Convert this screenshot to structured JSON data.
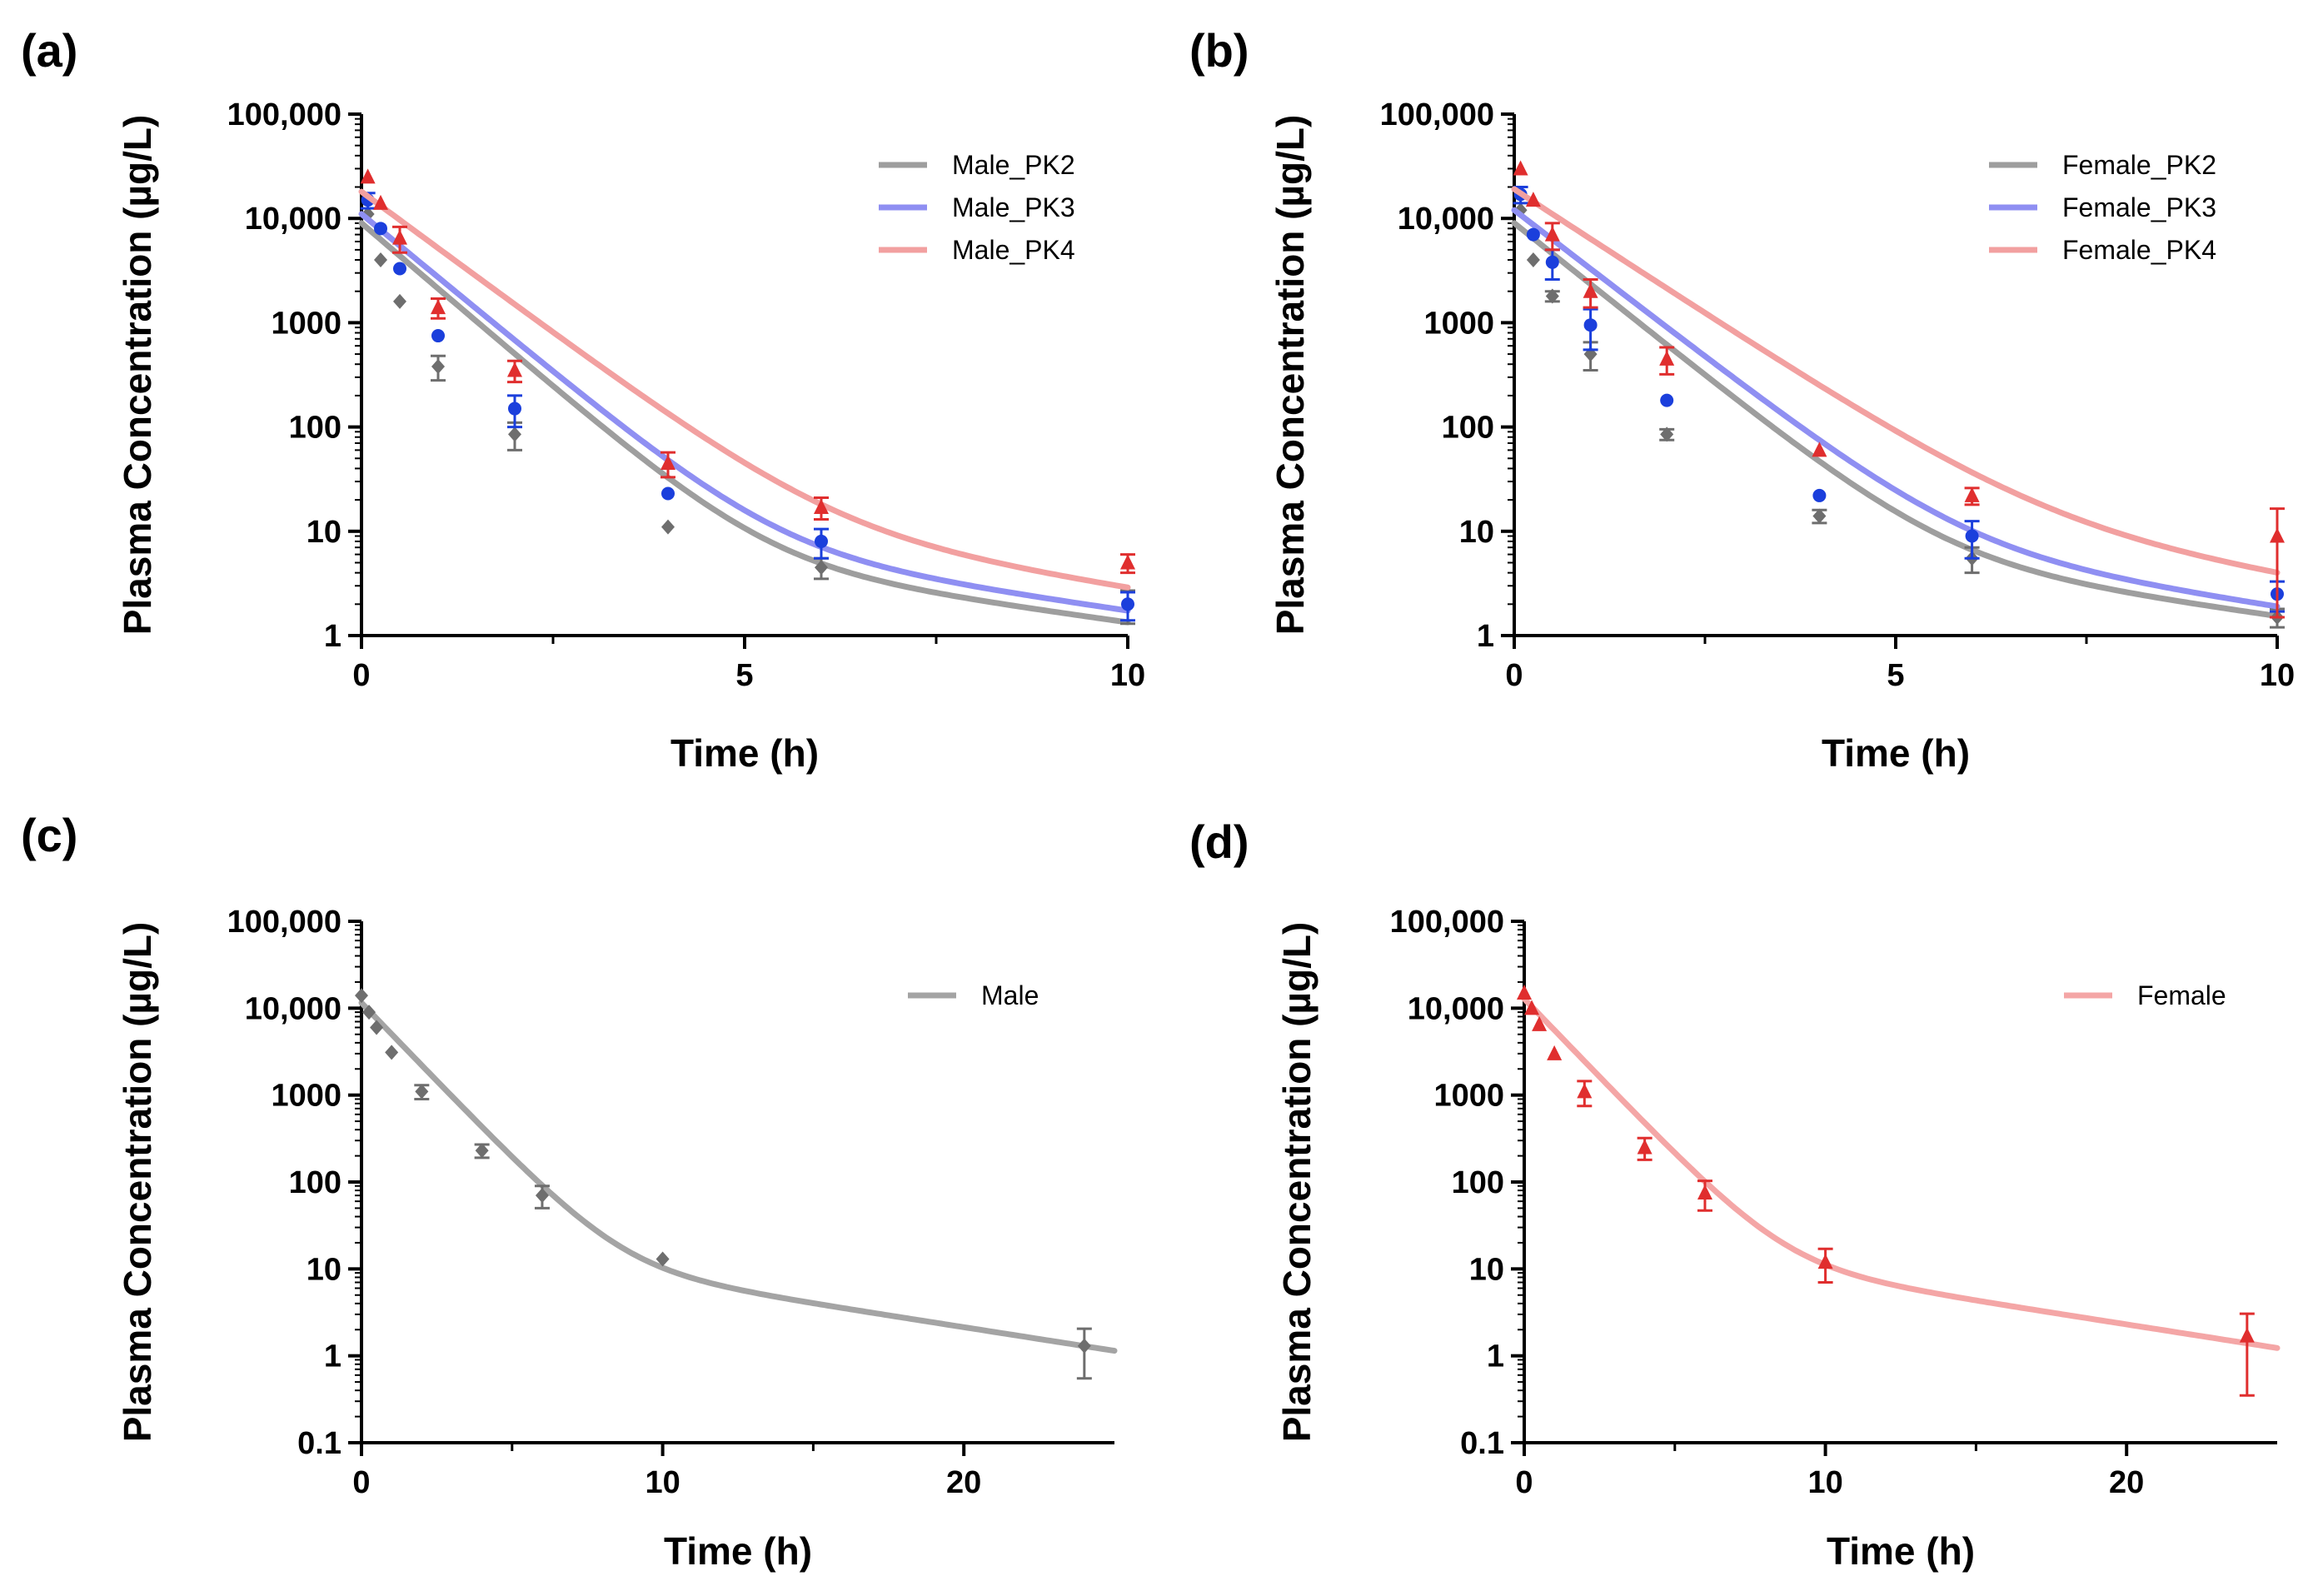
{
  "panels": [
    {
      "label": "(a)",
      "chart_data": {
        "type": "line",
        "title": "",
        "xlabel": "Time (h)",
        "ylabel": "Plasma Concentration (µg/L)",
        "xlim": [
          0,
          10
        ],
        "ylim": [
          1,
          100000
        ],
        "yscale": "log",
        "xticks": [
          {
            "v": 0,
            "t": "0"
          },
          {
            "v": 5,
            "t": "5"
          },
          {
            "v": 10,
            "t": "10"
          }
        ],
        "xminor": [
          2.5,
          7.5
        ],
        "yticks": [
          {
            "v": 1,
            "t": "1"
          },
          {
            "v": 10,
            "t": "10"
          },
          {
            "v": 100,
            "t": "100"
          },
          {
            "v": 1000,
            "t": "1000"
          },
          {
            "v": 10000,
            "t": "10,000"
          },
          {
            "v": 100000,
            "t": "100,000"
          }
        ],
        "legend_position": "top-right",
        "series": [
          {
            "name": "Male_PK2",
            "line_color": "#9e9e9e",
            "marker_color": "#6e6e6e",
            "marker": "diamond",
            "fit": {
              "A": 9000,
              "a": 1.45,
              "B": 14,
              "b": 0.235
            },
            "points": [
              {
                "x": 0.083,
                "y": 11000,
                "err": 0
              },
              {
                "x": 0.25,
                "y": 4000,
                "err": 0
              },
              {
                "x": 0.5,
                "y": 1600,
                "err": 0
              },
              {
                "x": 1,
                "y": 380,
                "err": 100
              },
              {
                "x": 2,
                "y": 85,
                "err": 25
              },
              {
                "x": 4,
                "y": 11,
                "err": 0
              },
              {
                "x": 6,
                "y": 4.5,
                "err": 1
              },
              {
                "x": 10,
                "y": 2,
                "err": 0.7
              }
            ]
          },
          {
            "name": "Male_PK3",
            "line_color": "#8f8ff2",
            "marker_color": "#1b3fdc",
            "marker": "circle",
            "fit": {
              "A": 11000,
              "a": 1.4,
              "B": 20,
              "b": 0.245
            },
            "points": [
              {
                "x": 0.083,
                "y": 15000,
                "err": 2500
              },
              {
                "x": 0.25,
                "y": 8000,
                "err": 0
              },
              {
                "x": 0.5,
                "y": 3300,
                "err": 0
              },
              {
                "x": 1,
                "y": 750,
                "err": 0
              },
              {
                "x": 2,
                "y": 150,
                "err": 50
              },
              {
                "x": 4,
                "y": 23,
                "err": 0
              },
              {
                "x": 6,
                "y": 8,
                "err": 2.5
              },
              {
                "x": 10,
                "y": 2,
                "err": 0.6
              }
            ]
          },
          {
            "name": "Male_PK4",
            "line_color": "#f2a0a0",
            "marker_color": "#e02e2e",
            "marker": "triangle",
            "fit": {
              "A": 18000,
              "a": 1.25,
              "B": 40,
              "b": 0.265
            },
            "points": [
              {
                "x": 0.083,
                "y": 25000,
                "err": 0
              },
              {
                "x": 0.25,
                "y": 14000,
                "err": 0
              },
              {
                "x": 0.5,
                "y": 6500,
                "err": 1800
              },
              {
                "x": 1,
                "y": 1400,
                "err": 300
              },
              {
                "x": 2,
                "y": 350,
                "err": 80
              },
              {
                "x": 4,
                "y": 45,
                "err": 12
              },
              {
                "x": 6,
                "y": 17,
                "err": 4
              },
              {
                "x": 10,
                "y": 5,
                "err": 1
              }
            ]
          }
        ]
      }
    },
    {
      "label": "(b)",
      "chart_data": {
        "type": "line",
        "title": "",
        "xlabel": "Time (h)",
        "ylabel": "Plasma Concentration (µg/L)",
        "xlim": [
          0,
          10
        ],
        "ylim": [
          1,
          100000
        ],
        "yscale": "log",
        "xticks": [
          {
            "v": 0,
            "t": "0"
          },
          {
            "v": 5,
            "t": "5"
          },
          {
            "v": 10,
            "t": "10"
          }
        ],
        "xminor": [
          2.5,
          7.5
        ],
        "yticks": [
          {
            "v": 1,
            "t": "1"
          },
          {
            "v": 10,
            "t": "10"
          },
          {
            "v": 100,
            "t": "100"
          },
          {
            "v": 1000,
            "t": "1000"
          },
          {
            "v": 10000,
            "t": "10,000"
          },
          {
            "v": 100000,
            "t": "100,000"
          }
        ],
        "legend_position": "top-right",
        "series": [
          {
            "name": "Female_PK2",
            "line_color": "#9e9e9e",
            "marker_color": "#6e6e6e",
            "marker": "diamond",
            "fit": {
              "A": 9000,
              "a": 1.35,
              "B": 16,
              "b": 0.235
            },
            "points": [
              {
                "x": 0.083,
                "y": 12000,
                "err": 0
              },
              {
                "x": 0.25,
                "y": 4000,
                "err": 0
              },
              {
                "x": 0.5,
                "y": 1800,
                "err": 200
              },
              {
                "x": 1,
                "y": 500,
                "err": 150
              },
              {
                "x": 2,
                "y": 85,
                "err": 10
              },
              {
                "x": 4,
                "y": 14,
                "err": 2
              },
              {
                "x": 6,
                "y": 5.5,
                "err": 1.5
              },
              {
                "x": 10,
                "y": 1.5,
                "err": 0.3
              }
            ]
          },
          {
            "name": "Female_PK3",
            "line_color": "#8f8ff2",
            "marker_color": "#1b3fdc",
            "marker": "circle",
            "fit": {
              "A": 12000,
              "a": 1.3,
              "B": 24,
              "b": 0.255
            },
            "points": [
              {
                "x": 0.083,
                "y": 17000,
                "err": 3000
              },
              {
                "x": 0.25,
                "y": 7000,
                "err": 0
              },
              {
                "x": 0.5,
                "y": 3800,
                "err": 1200
              },
              {
                "x": 1,
                "y": 950,
                "err": 400
              },
              {
                "x": 2,
                "y": 180,
                "err": 0
              },
              {
                "x": 4,
                "y": 22,
                "err": 0
              },
              {
                "x": 6,
                "y": 9,
                "err": 3.5
              },
              {
                "x": 10,
                "y": 2.5,
                "err": 0.8
              }
            ]
          },
          {
            "name": "Female_PK4",
            "line_color": "#f2a0a0",
            "marker_color": "#e02e2e",
            "marker": "triangle",
            "fit": {
              "A": 19000,
              "a": 1.1,
              "B": 55,
              "b": 0.27
            },
            "points": [
              {
                "x": 0.083,
                "y": 30000,
                "err": 0
              },
              {
                "x": 0.25,
                "y": 15000,
                "err": 0
              },
              {
                "x": 0.5,
                "y": 7000,
                "err": 2000
              },
              {
                "x": 1,
                "y": 2000,
                "err": 600
              },
              {
                "x": 2,
                "y": 450,
                "err": 130
              },
              {
                "x": 4,
                "y": 60,
                "err": 0
              },
              {
                "x": 6,
                "y": 22,
                "err": 4
              },
              {
                "x": 10,
                "y": 9,
                "err": 7.5
              }
            ]
          }
        ]
      }
    },
    {
      "label": "(c)",
      "chart_data": {
        "type": "line",
        "title": "",
        "xlabel": "Time (h)",
        "ylabel": "Plasma Concentration (µg/L)",
        "xlim": [
          0,
          25
        ],
        "ylim": [
          0.1,
          100000
        ],
        "yscale": "log",
        "xticks": [
          {
            "v": 0,
            "t": "0"
          },
          {
            "v": 10,
            "t": "10"
          },
          {
            "v": 20,
            "t": "20"
          }
        ],
        "xminor": [
          5,
          15
        ],
        "yticks": [
          {
            "v": 0.1,
            "t": "0.1"
          },
          {
            "v": 1,
            "t": "1"
          },
          {
            "v": 10,
            "t": "10"
          },
          {
            "v": 100,
            "t": "100"
          },
          {
            "v": 1000,
            "t": "1000"
          },
          {
            "v": 10000,
            "t": "10,000"
          },
          {
            "v": 100000,
            "t": "100,000"
          }
        ],
        "legend_position": "top-right",
        "series": [
          {
            "name": "Male",
            "line_color": "#a4a4a4",
            "marker_color": "#6e6e6e",
            "marker": "diamond",
            "fit": {
              "A": 11500,
              "a": 0.83,
              "B": 26,
              "b": 0.125
            },
            "points": [
              {
                "x": 0,
                "y": 14000,
                "err": 0
              },
              {
                "x": 0.25,
                "y": 9000,
                "err": 0
              },
              {
                "x": 0.5,
                "y": 6000,
                "err": 0
              },
              {
                "x": 1,
                "y": 3100,
                "err": 0
              },
              {
                "x": 2,
                "y": 1100,
                "err": 200
              },
              {
                "x": 4,
                "y": 230,
                "err": 40
              },
              {
                "x": 6,
                "y": 70,
                "err": 20
              },
              {
                "x": 10,
                "y": 13,
                "err": 0
              },
              {
                "x": 24,
                "y": 1.3,
                "err": 0.75
              }
            ]
          }
        ]
      }
    },
    {
      "label": "(d)",
      "chart_data": {
        "type": "line",
        "title": "",
        "xlabel": "Time (h)",
        "ylabel": "Plasma Concentration (µg/L)",
        "xlim": [
          0,
          25
        ],
        "ylim": [
          0.1,
          100000
        ],
        "yscale": "log",
        "xticks": [
          {
            "v": 0,
            "t": "0"
          },
          {
            "v": 10,
            "t": "10"
          },
          {
            "v": 20,
            "t": "20"
          }
        ],
        "xminor": [
          5,
          15
        ],
        "yticks": [
          {
            "v": 0.1,
            "t": "0.1"
          },
          {
            "v": 1,
            "t": "1"
          },
          {
            "v": 10,
            "t": "10"
          },
          {
            "v": 100,
            "t": "100"
          },
          {
            "v": 1000,
            "t": "1000"
          },
          {
            "v": 10000,
            "t": "10,000"
          },
          {
            "v": 100000,
            "t": "100,000"
          }
        ],
        "legend_position": "top-right",
        "series": [
          {
            "name": "Female",
            "line_color": "#f4a6a6",
            "marker_color": "#e02e2e",
            "marker": "triangle",
            "fit": {
              "A": 12800,
              "a": 0.83,
              "B": 28,
              "b": 0.125
            },
            "points": [
              {
                "x": 0,
                "y": 15000,
                "err": 0
              },
              {
                "x": 0.25,
                "y": 10000,
                "err": 0
              },
              {
                "x": 0.5,
                "y": 6500,
                "err": 0
              },
              {
                "x": 1,
                "y": 3000,
                "err": 0
              },
              {
                "x": 2,
                "y": 1100,
                "err": 350
              },
              {
                "x": 4,
                "y": 250,
                "err": 70
              },
              {
                "x": 6,
                "y": 75,
                "err": 28
              },
              {
                "x": 10,
                "y": 12,
                "err": 5
              },
              {
                "x": 24,
                "y": 1.7,
                "err": 1.35
              }
            ]
          }
        ]
      }
    }
  ]
}
